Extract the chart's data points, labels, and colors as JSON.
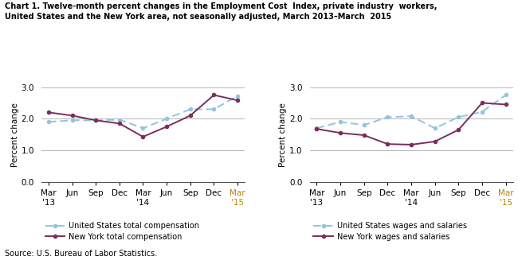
{
  "title_line1": "Chart 1. Twelve-month percent changes in the Employment Cost  Index, private industry  workers,",
  "title_line2": "United States and the New York area, not seasonally adjusted, March 2013–March  2015",
  "ylabel": "Percent change",
  "source": "Source: U.S. Bureau of Labor Statistics.",
  "x_labels": [
    "Mar\n'13",
    "Jun",
    "Sep",
    "Dec",
    "Mar\n'14",
    "Jun",
    "Sep",
    "Dec",
    "Mar\n'15"
  ],
  "x_label_colors": [
    "black",
    "black",
    "black",
    "black",
    "black",
    "black",
    "black",
    "black",
    "#b8860b"
  ],
  "us_total_comp": [
    1.9,
    1.95,
    1.95,
    1.97,
    1.7,
    2.0,
    2.3,
    2.3,
    2.72
  ],
  "ny_total_comp": [
    2.2,
    2.1,
    1.95,
    1.85,
    1.43,
    1.75,
    2.1,
    2.75,
    2.58
  ],
  "us_wages_sal": [
    1.7,
    1.9,
    1.8,
    2.05,
    2.08,
    1.7,
    2.05,
    2.22,
    2.75
  ],
  "ny_wages_sal": [
    1.68,
    1.55,
    1.48,
    1.2,
    1.18,
    1.28,
    1.65,
    2.5,
    2.45
  ],
  "us_color": "#92c5de",
  "ny_color": "#7b2d5e",
  "ylim": [
    0.0,
    3.0
  ],
  "yticks": [
    0.0,
    1.0,
    2.0,
    3.0
  ],
  "left_legend": [
    "United States total compensation",
    "New York total compensation"
  ],
  "right_legend": [
    "United States wages and salaries",
    "New York wages and salaries"
  ]
}
